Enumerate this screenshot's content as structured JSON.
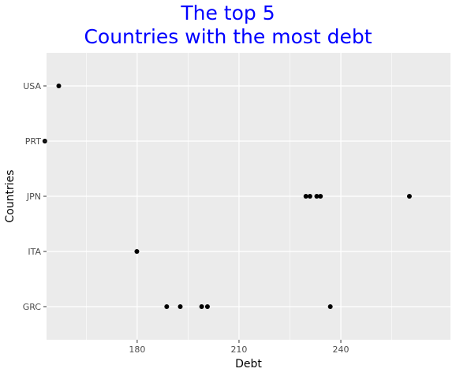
{
  "chart_data": {
    "type": "scatter",
    "title_lines": [
      "The top 5",
      "Countries with the most debt"
    ],
    "xlabel": "Debt",
    "ylabel": "Countries",
    "x_ticks": [
      180,
      210,
      240
    ],
    "x_tick_labels": [
      "180",
      "210",
      "240"
    ],
    "xlim": [
      153.3,
      272.3
    ],
    "categories": [
      "GRC",
      "ITA",
      "JPN",
      "PRT",
      "USA"
    ],
    "grid": true,
    "points": [
      {
        "country": "USA",
        "x": 156.9
      },
      {
        "country": "PRT",
        "x": 152.8
      },
      {
        "country": "JPN",
        "x": 229.7
      },
      {
        "country": "JPN",
        "x": 230.9
      },
      {
        "country": "JPN",
        "x": 232.9
      },
      {
        "country": "JPN",
        "x": 234.0
      },
      {
        "country": "JPN",
        "x": 260.2
      },
      {
        "country": "ITA",
        "x": 179.9
      },
      {
        "country": "GRC",
        "x": 188.7
      },
      {
        "country": "GRC",
        "x": 192.7
      },
      {
        "country": "GRC",
        "x": 199.0
      },
      {
        "country": "GRC",
        "x": 200.7
      },
      {
        "country": "GRC",
        "x": 236.9
      }
    ],
    "colors": {
      "title": "#0000ff",
      "panel": "#ebebeb",
      "grid": "#ffffff",
      "point": "#000000"
    }
  }
}
